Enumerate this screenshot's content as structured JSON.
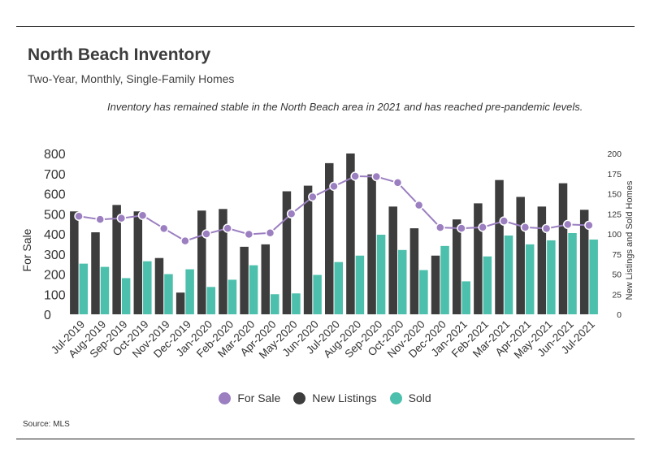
{
  "header": {
    "title": "North Beach Inventory",
    "subtitle": "Two-Year, Monthly, Single-Family Homes",
    "note": "Inventory has remained stable in the North Beach area in 2021 and has reached pre-pandemic levels."
  },
  "footer": {
    "source": "Source:  MLS"
  },
  "colors": {
    "for_sale": "#9b7fc0",
    "new_listings": "#3d3d3d",
    "sold": "#4cc0ac",
    "line": "#9b7fc0"
  },
  "chart_data": {
    "type": "bar",
    "categories": [
      "Jul-2019",
      "Aug-2019",
      "Sep-2019",
      "Oct-2019",
      "Nov-2019",
      "Dec-2019",
      "Jan-2020",
      "Feb-2020",
      "Mar-2020",
      "Apr-2020",
      "May-2020",
      "Jun-2020",
      "Jul-2020",
      "Aug-2020",
      "Sep-2020",
      "Oct-2020",
      "Nov-2020",
      "Dec-2020",
      "Jan-2021",
      "Feb-2021",
      "Mar-2021",
      "Apr-2021",
      "May-2021",
      "Jun-2021",
      "Jul-2021"
    ],
    "left_axis": {
      "label": "For Sale",
      "ylim": [
        0,
        800
      ],
      "ticks": [
        "0",
        "100",
        "200",
        "300",
        "400",
        "500",
        "600",
        "700",
        "800"
      ]
    },
    "right_axis": {
      "label": "New Listings and Sold Homes",
      "ylim": [
        0,
        200
      ],
      "ticks": [
        "0",
        "25",
        "50",
        "75",
        "100",
        "125",
        "150",
        "175",
        "200"
      ]
    },
    "series": [
      {
        "name": "For Sale",
        "type": "line",
        "axis": "left",
        "values": [
          488,
          472,
          478,
          492,
          427,
          365,
          400,
          428,
          398,
          405,
          500,
          584,
          637,
          687,
          685,
          655,
          543,
          432,
          428,
          433,
          464,
          433,
          427,
          447,
          443
        ]
      },
      {
        "name": "New Listings",
        "type": "bar",
        "axis": "right",
        "values": [
          128,
          102,
          136,
          128,
          70,
          27,
          129,
          131,
          84,
          87,
          153,
          160,
          188,
          200,
          174,
          134,
          107,
          73,
          118,
          138,
          167,
          146,
          134,
          163,
          130
        ]
      },
      {
        "name": "Sold",
        "type": "bar",
        "axis": "right",
        "values": [
          63,
          59,
          45,
          66,
          50,
          56,
          34,
          43,
          61,
          25,
          26,
          49,
          65,
          73,
          99,
          80,
          55,
          85,
          41,
          72,
          98,
          87,
          92,
          101,
          93
        ]
      }
    ],
    "legend": {
      "placement": "bottom"
    },
    "grid": false
  }
}
